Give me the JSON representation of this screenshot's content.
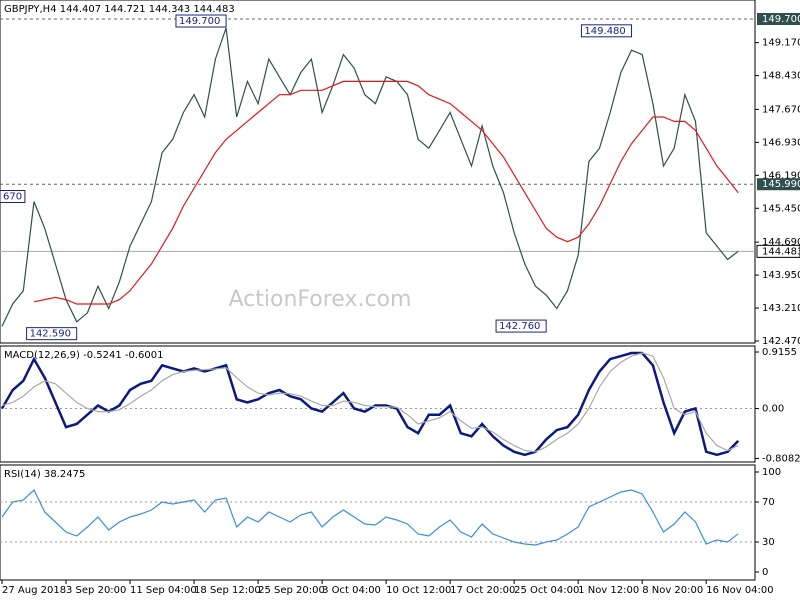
{
  "chart_data": [
    {
      "type": "line",
      "title": "GBPJPY,H4  144.407 144.721 144.343 144.483",
      "watermark": "ActionForex.com",
      "ylim": [
        142.425,
        150.127
      ],
      "yticks": [
        {
          "value": 149.17,
          "label": "149.170"
        },
        {
          "value": 148.43,
          "label": "148.430"
        },
        {
          "value": 147.67,
          "label": "147.670"
        },
        {
          "value": 146.93,
          "label": "146.930"
        },
        {
          "value": 146.19,
          "label": "146.190"
        },
        {
          "value": 145.45,
          "label": "145.450"
        },
        {
          "value": 144.69,
          "label": "144.690"
        },
        {
          "value": 143.95,
          "label": "143.950"
        },
        {
          "value": 143.21,
          "label": "143.210"
        },
        {
          "value": 142.47,
          "label": "142.470"
        }
      ],
      "levels": [
        {
          "value": 149.7,
          "label": "149.700"
        },
        {
          "value": 145.99,
          "label": "145.990"
        },
        {
          "value": 144.483,
          "label": "144.483"
        }
      ],
      "annotations": [
        {
          "x": 21,
          "value": 149.7,
          "label": "149.700"
        },
        {
          "x": 59,
          "value": 149.48,
          "label": "149.480"
        },
        {
          "x": 51,
          "value": 142.76,
          "label": "142.760"
        },
        {
          "x": 7,
          "value": 142.59,
          "label": "142.590"
        },
        {
          "x": 0,
          "value": 145.67,
          "label": "670"
        }
      ],
      "series": [
        {
          "color": "#2f4f4f",
          "values": [
            142.8,
            143.3,
            143.6,
            145.6,
            145.0,
            144.2,
            143.4,
            142.9,
            143.1,
            143.7,
            143.2,
            143.8,
            144.6,
            145.1,
            145.6,
            146.7,
            147.0,
            147.6,
            148.0,
            147.5,
            148.8,
            149.5,
            147.5,
            148.3,
            147.8,
            148.8,
            148.4,
            148.0,
            148.5,
            148.8,
            147.6,
            148.2,
            148.9,
            148.6,
            148.0,
            147.8,
            148.4,
            148.3,
            148.0,
            147.0,
            146.8,
            147.2,
            147.6,
            147.0,
            146.4,
            147.3,
            146.4,
            145.8,
            144.9,
            144.2,
            143.7,
            143.5,
            143.2,
            143.6,
            144.4,
            146.5,
            146.8,
            147.6,
            148.5,
            149.0,
            148.9,
            147.8,
            146.4,
            146.8,
            148.0,
            147.4,
            144.9,
            144.6,
            144.3,
            144.483
          ]
        },
        {
          "color": "#e0191b",
          "values": [
            null,
            null,
            null,
            143.35,
            143.4,
            143.45,
            143.4,
            143.3,
            143.3,
            143.3,
            143.3,
            143.4,
            143.6,
            143.9,
            144.2,
            144.6,
            145.0,
            145.5,
            145.9,
            146.3,
            146.7,
            147.0,
            147.2,
            147.4,
            147.6,
            147.8,
            148.0,
            148.0,
            148.1,
            148.1,
            148.1,
            148.2,
            148.3,
            148.3,
            148.3,
            148.3,
            148.3,
            148.3,
            148.3,
            148.2,
            148.0,
            147.9,
            147.8,
            147.6,
            147.4,
            147.2,
            146.9,
            146.6,
            146.2,
            145.8,
            145.4,
            145.0,
            144.8,
            144.7,
            144.8,
            145.1,
            145.5,
            146.0,
            146.5,
            146.9,
            147.2,
            147.5,
            147.5,
            147.4,
            147.4,
            147.2,
            146.8,
            146.4,
            146.1,
            145.8
          ]
        }
      ]
    },
    {
      "type": "line",
      "title": "MACD(12,26,9) -0.5241 -0.6001",
      "ylim": [
        -0.866,
        1.013
      ],
      "yticks": [
        0.9155,
        {
          "value": 0,
          "label": "0.00"
        },
        -0.8082
      ],
      "dotted": [
        0
      ],
      "series": [
        {
          "color": "#0a1a80",
          "values": [
            0.0,
            0.3,
            0.45,
            0.8,
            0.5,
            0.1,
            -0.3,
            -0.25,
            -0.1,
            0.05,
            -0.05,
            0.05,
            0.3,
            0.4,
            0.45,
            0.7,
            0.65,
            0.6,
            0.65,
            0.6,
            0.65,
            0.7,
            0.15,
            0.1,
            0.15,
            0.25,
            0.3,
            0.2,
            0.15,
            0.0,
            -0.05,
            0.1,
            0.25,
            0.0,
            -0.05,
            0.05,
            0.05,
            0.0,
            -0.3,
            -0.4,
            -0.1,
            -0.1,
            0.05,
            -0.4,
            -0.45,
            -0.25,
            -0.45,
            -0.6,
            -0.7,
            -0.75,
            -0.7,
            -0.5,
            -0.35,
            -0.3,
            -0.1,
            0.3,
            0.6,
            0.8,
            0.85,
            0.9,
            0.9,
            0.7,
            0.1,
            -0.4,
            -0.05,
            0.0,
            -0.7,
            -0.75,
            -0.7,
            -0.5241
          ]
        },
        {
          "color": "#a9a9a9",
          "values": [
            0.05,
            0.1,
            0.2,
            0.35,
            0.45,
            0.4,
            0.25,
            0.1,
            0.0,
            -0.05,
            -0.05,
            -0.02,
            0.08,
            0.2,
            0.3,
            0.45,
            0.55,
            0.6,
            0.62,
            0.63,
            0.64,
            0.66,
            0.5,
            0.35,
            0.25,
            0.22,
            0.25,
            0.24,
            0.2,
            0.12,
            0.05,
            0.05,
            0.12,
            0.1,
            0.05,
            0.03,
            0.03,
            0.02,
            -0.1,
            -0.25,
            -0.2,
            -0.15,
            -0.05,
            -0.2,
            -0.32,
            -0.3,
            -0.38,
            -0.5,
            -0.6,
            -0.68,
            -0.7,
            -0.62,
            -0.5,
            -0.4,
            -0.25,
            0.0,
            0.35,
            0.6,
            0.75,
            0.85,
            0.9,
            0.85,
            0.5,
            0.0,
            -0.1,
            -0.05,
            -0.4,
            -0.6,
            -0.68,
            -0.6001
          ]
        }
      ]
    },
    {
      "type": "line",
      "title": "RSI(14) 38.2475",
      "ylim": [
        -8,
        107
      ],
      "yticks": [
        100,
        70,
        30,
        0
      ],
      "dotted": [
        70,
        30
      ],
      "categories": [
        "27 Aug 2018",
        null,
        null,
        null,
        null,
        null,
        "3 Sep 20:00",
        null,
        null,
        null,
        null,
        null,
        "11 Sep 04:00",
        null,
        null,
        null,
        null,
        null,
        "18 Sep 12:00",
        null,
        null,
        null,
        null,
        null,
        "25 Sep 20:00",
        null,
        null,
        null,
        null,
        null,
        "3 Oct 04:00",
        null,
        null,
        null,
        null,
        null,
        "10 Oct 12:00",
        null,
        null,
        null,
        null,
        null,
        "17 Oct 20:00",
        null,
        null,
        null,
        null,
        null,
        "25 Oct 04:00",
        null,
        null,
        null,
        null,
        null,
        "1 Nov 12:00",
        null,
        null,
        null,
        null,
        null,
        "8 Nov 20:00",
        null,
        null,
        null,
        null,
        null,
        "16 Nov 04:00",
        null,
        null,
        null
      ],
      "series": [
        {
          "color": "#3a8fd8",
          "values": [
            55,
            70,
            72,
            82,
            60,
            50,
            40,
            36,
            45,
            55,
            42,
            50,
            55,
            58,
            62,
            70,
            68,
            70,
            72,
            60,
            72,
            74,
            45,
            55,
            50,
            60,
            55,
            50,
            57,
            60,
            45,
            55,
            62,
            55,
            48,
            47,
            55,
            52,
            48,
            38,
            36,
            45,
            52,
            40,
            35,
            48,
            38,
            34,
            30,
            28,
            27,
            30,
            32,
            38,
            45,
            65,
            70,
            75,
            80,
            82,
            78,
            60,
            40,
            48,
            60,
            50,
            28,
            32,
            30,
            38.2475
          ]
        }
      ]
    }
  ]
}
